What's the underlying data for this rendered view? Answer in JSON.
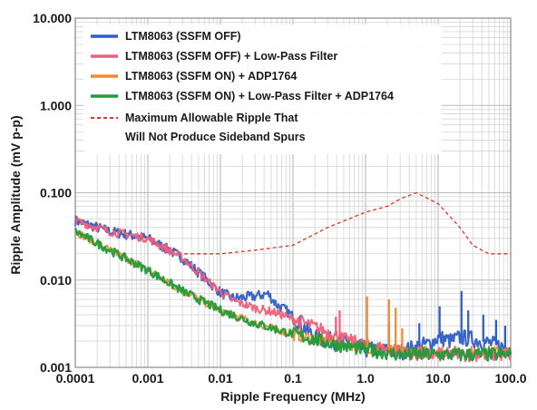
{
  "chart_data": {
    "type": "line",
    "x_scale": "log",
    "y_scale": "log",
    "xlabel": "Ripple Frequency (MHz)",
    "ylabel": "Ripple Amplitude (mV p-p)",
    "xlim": [
      0.0001,
      100
    ],
    "ylim": [
      0.001,
      10
    ],
    "grid": true,
    "legend_position": "top-left",
    "x_ticks": [
      "0.0001",
      "0.001",
      "0.01",
      "0.1",
      "1.0",
      "10.0",
      "100.0"
    ],
    "y_ticks": [
      "0.001",
      "0.010",
      "0.100",
      "1.000",
      "10.000"
    ],
    "series": [
      {
        "name": "LTM8063 (SSFM OFF)",
        "color": "#2f5fc4",
        "style": "solid",
        "points": [
          [
            0.0001,
            0.048
          ],
          [
            0.0003,
            0.036
          ],
          [
            0.001,
            0.03
          ],
          [
            0.003,
            0.018
          ],
          [
            0.01,
            0.0072
          ],
          [
            0.015,
            0.0062
          ],
          [
            0.02,
            0.0063
          ],
          [
            0.03,
            0.0065
          ],
          [
            0.045,
            0.007
          ],
          [
            0.06,
            0.0052
          ],
          [
            0.08,
            0.0045
          ],
          [
            0.1,
            0.0038
          ],
          [
            0.2,
            0.0022
          ],
          [
            0.5,
            0.0019
          ],
          [
            1,
            0.0016
          ],
          [
            3,
            0.0015
          ],
          [
            5,
            0.0017
          ],
          [
            8,
            0.0019
          ],
          [
            10,
            0.0022
          ],
          [
            15,
            0.002
          ],
          [
            20,
            0.0022
          ],
          [
            30,
            0.0021
          ],
          [
            50,
            0.0019
          ],
          [
            100,
            0.0016
          ]
        ]
      },
      {
        "name": "LTM8063 (SSFM OFF) + Low-Pass Filter",
        "color": "#ef5f7a",
        "style": "solid",
        "points": [
          [
            0.0001,
            0.048
          ],
          [
            0.0003,
            0.036
          ],
          [
            0.001,
            0.03
          ],
          [
            0.003,
            0.018
          ],
          [
            0.008,
            0.0085
          ],
          [
            0.015,
            0.0058
          ],
          [
            0.03,
            0.0048
          ],
          [
            0.06,
            0.0042
          ],
          [
            0.1,
            0.0036
          ],
          [
            0.2,
            0.0029
          ],
          [
            0.35,
            0.0024
          ],
          [
            0.5,
            0.0021
          ],
          [
            1,
            0.0018
          ],
          [
            2,
            0.0016
          ],
          [
            5,
            0.0014
          ],
          [
            10,
            0.0014
          ],
          [
            30,
            0.0014
          ],
          [
            100,
            0.0014
          ]
        ]
      },
      {
        "name": "LTM8063 (SSFM ON) + ADP1764",
        "color": "#f08a2c",
        "style": "solid",
        "points": [
          [
            0.0001,
            0.036
          ],
          [
            0.0003,
            0.022
          ],
          [
            0.001,
            0.013
          ],
          [
            0.003,
            0.0075
          ],
          [
            0.01,
            0.0045
          ],
          [
            0.03,
            0.0032
          ],
          [
            0.1,
            0.0024
          ],
          [
            0.3,
            0.002
          ],
          [
            1,
            0.0017
          ],
          [
            2,
            0.0016
          ],
          [
            3,
            0.0015
          ],
          [
            5,
            0.0015
          ],
          [
            10,
            0.0015
          ],
          [
            30,
            0.0015
          ],
          [
            100,
            0.0015
          ]
        ]
      },
      {
        "name": "LTM8063 (SSFM ON) + Low-Pass Filter + ADP1764",
        "color": "#1e9c3a",
        "style": "solid",
        "points": [
          [
            0.0001,
            0.036
          ],
          [
            0.0003,
            0.022
          ],
          [
            0.001,
            0.013
          ],
          [
            0.003,
            0.0075
          ],
          [
            0.01,
            0.0045
          ],
          [
            0.03,
            0.0032
          ],
          [
            0.1,
            0.0024
          ],
          [
            0.3,
            0.0019
          ],
          [
            1,
            0.0016
          ],
          [
            3,
            0.0014
          ],
          [
            10,
            0.0014
          ],
          [
            30,
            0.0014
          ],
          [
            100,
            0.0014
          ]
        ]
      },
      {
        "name": "Maximum Allowable Ripple That Will Not Produce Sideband Spurs",
        "legend_lines": [
          "Maximum Allowable Ripple That",
          "Will Not Produce Sideband Spurs"
        ],
        "color": "#d63a2a",
        "style": "dashed",
        "points": [
          [
            0.0001,
            0.048
          ],
          [
            0.001,
            0.03
          ],
          [
            0.003,
            0.02
          ],
          [
            0.01,
            0.02
          ],
          [
            0.03,
            0.022
          ],
          [
            0.1,
            0.025
          ],
          [
            0.3,
            0.04
          ],
          [
            1,
            0.06
          ],
          [
            2,
            0.07
          ],
          [
            3,
            0.085
          ],
          [
            5,
            0.1
          ],
          [
            10,
            0.075
          ],
          [
            20,
            0.04
          ],
          [
            30,
            0.025
          ],
          [
            50,
            0.02
          ],
          [
            100,
            0.02
          ]
        ]
      }
    ],
    "spikes": [
      {
        "series": 1,
        "x": 0.44,
        "y": 0.0045
      },
      {
        "series": 1,
        "x": 0.39,
        "y": 0.0038
      },
      {
        "series": 1,
        "x": 2.1,
        "y": 0.0032
      },
      {
        "series": 2,
        "x": 1.05,
        "y": 0.0065
      },
      {
        "series": 2,
        "x": 2.1,
        "y": 0.006
      },
      {
        "series": 2,
        "x": 2.6,
        "y": 0.0048
      },
      {
        "series": 2,
        "x": 3.2,
        "y": 0.0028
      },
      {
        "series": 0,
        "x": 5.5,
        "y": 0.0032
      },
      {
        "series": 0,
        "x": 10.5,
        "y": 0.005
      },
      {
        "series": 0,
        "x": 21,
        "y": 0.0075
      },
      {
        "series": 0,
        "x": 26,
        "y": 0.0045
      },
      {
        "series": 0,
        "x": 42,
        "y": 0.004
      },
      {
        "series": 0,
        "x": 63,
        "y": 0.0035
      },
      {
        "series": 0,
        "x": 84,
        "y": 0.003
      }
    ]
  }
}
